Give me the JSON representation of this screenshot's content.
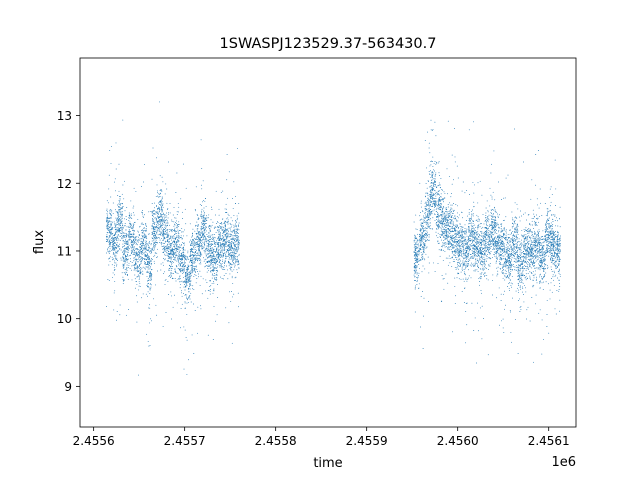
{
  "chart_data": {
    "type": "scatter",
    "title": "1SWASPJ123529.37-563430.7",
    "xlabel": "time",
    "ylabel": "flux",
    "x_offset_label": "1e6",
    "xlim": [
      2455585.0,
      2456130.0
    ],
    "ylim": [
      8.4,
      13.85
    ],
    "x_ticks": [
      {
        "value": 2455600,
        "label": "2.4556"
      },
      {
        "value": 2455700,
        "label": "2.4557"
      },
      {
        "value": 2455800,
        "label": "2.4558"
      },
      {
        "value": 2455900,
        "label": "2.4559"
      },
      {
        "value": 2456000,
        "label": "2.4560"
      },
      {
        "value": 2456100,
        "label": "2.4561"
      }
    ],
    "y_ticks": [
      {
        "value": 9,
        "label": "9"
      },
      {
        "value": 10,
        "label": "10"
      },
      {
        "value": 11,
        "label": "11"
      },
      {
        "value": 12,
        "label": "12"
      },
      {
        "value": 13,
        "label": "13"
      }
    ],
    "grid": false,
    "legend": "none",
    "series": [
      {
        "color": "#1f77b4",
        "segments": [
          {
            "x_start": 2455614,
            "x_end": 2455754,
            "median_flux": 11.05
          },
          {
            "x_start": 2455952,
            "x_end": 2456107,
            "median_flux": 11.15
          }
        ],
        "x": [
          2455614,
          2455620,
          2455626,
          2455632,
          2455638,
          2455645,
          2455652,
          2455658,
          2455664,
          2455670,
          2455676,
          2455682,
          2455688,
          2455694,
          2455700,
          2455706,
          2455712,
          2455718,
          2455724,
          2455730,
          2455736,
          2455742,
          2455748,
          2455754,
          2455952,
          2455958,
          2455964,
          2455970,
          2455976,
          2455982,
          2455988,
          2455994,
          2456000,
          2456006,
          2456012,
          2456018,
          2456024,
          2456030,
          2456036,
          2456042,
          2456048,
          2456054,
          2456060,
          2456066,
          2456072,
          2456078,
          2456084,
          2456090,
          2456096,
          2456102,
          2456107
        ],
        "y": [
          11.3,
          11.1,
          11.4,
          11.0,
          11.2,
          10.9,
          11.1,
          10.8,
          11.3,
          11.5,
          11.2,
          11.0,
          11.1,
          10.9,
          10.6,
          10.9,
          11.1,
          11.3,
          11.0,
          10.9,
          11.1,
          11.2,
          11.0,
          11.1,
          10.9,
          11.2,
          11.5,
          11.9,
          11.6,
          11.4,
          11.3,
          11.2,
          11.1,
          11.0,
          11.2,
          11.1,
          11.0,
          11.2,
          11.3,
          11.1,
          11.0,
          10.9,
          11.1,
          10.8,
          11.0,
          11.0,
          11.1,
          10.9,
          11.2,
          11.1,
          11.0
        ]
      }
    ]
  }
}
